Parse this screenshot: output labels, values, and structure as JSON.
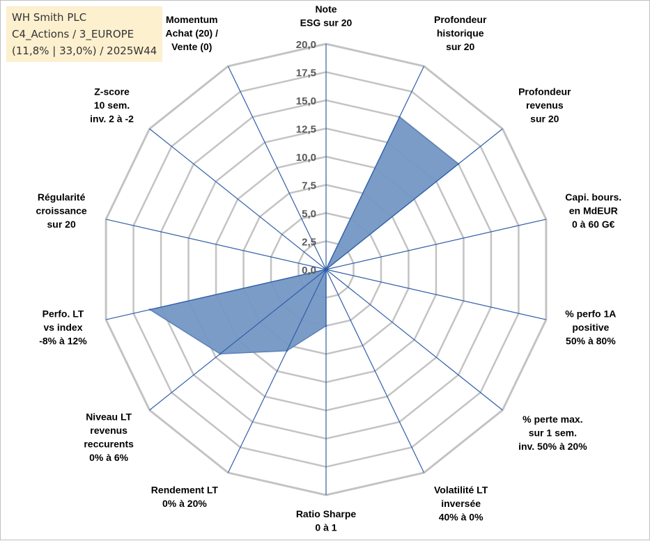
{
  "header": {
    "line1": "WH Smith PLC",
    "line2": "C4_Actions / 3_EUROPE",
    "line3": "(11,8% | 33,0%) / 2025W44"
  },
  "colors": {
    "fill": "#7397c4",
    "stroke": "#5b82b8",
    "spoke": "#2f5ea8",
    "grid": "#c3c3c3",
    "title_bg": "#fdf0cf"
  },
  "chart_data": {
    "type": "radar",
    "title": "WH Smith PLC",
    "range": [
      0,
      20
    ],
    "tick_step": 2.5,
    "tick_labels": [
      "0,0",
      "2,5",
      "5,0",
      "7,5",
      "10,0",
      "12,5",
      "15,0",
      "17,5",
      "20,0"
    ],
    "categories": [
      [
        "Note",
        "ESG sur 20"
      ],
      [
        "Profondeur",
        "historique",
        "sur 20"
      ],
      [
        "Profondeur",
        "revenus",
        "sur 20"
      ],
      [
        "Capi. bours.",
        "en MdEUR",
        "0 à 60 G€"
      ],
      [
        "% perfo 1A",
        "positive",
        "50% à 80%"
      ],
      [
        "% perte max.",
        "sur 1 sem.",
        "inv. 50% à 20%"
      ],
      [
        "Volatilité LT",
        "inversée",
        "40% à 0%"
      ],
      [
        "Ratio Sharpe",
        "0 à 1"
      ],
      [
        "Rendement LT",
        "0% à 20%"
      ],
      [
        "Niveau LT",
        "revenus",
        "reccurents",
        "0% à 6%"
      ],
      [
        "Perfo. LT",
        "vs index",
        "-8% à 12%"
      ],
      [
        "Régularité",
        "croissance",
        "sur 20"
      ],
      [
        "Z-score",
        "10 sem.",
        "inv. 2 à -2"
      ],
      [
        "Momentum",
        "Achat (20) /",
        "Vente (0)"
      ]
    ],
    "series": [
      {
        "name": "WH Smith PLC",
        "values": [
          0,
          15,
          15,
          0,
          0,
          0,
          0,
          5,
          8,
          12,
          16,
          0,
          0,
          0
        ]
      }
    ]
  }
}
